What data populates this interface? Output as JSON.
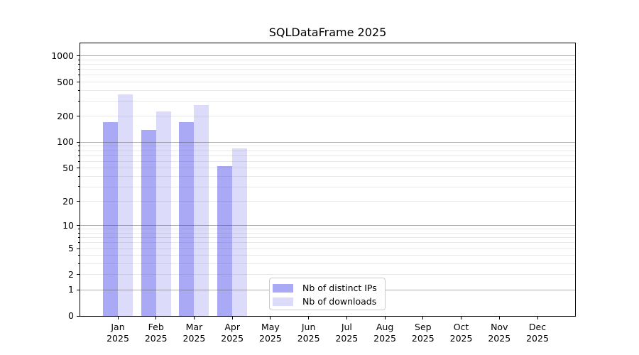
{
  "chart_data": {
    "type": "bar",
    "title": "SQLDataFrame 2025",
    "categories": [
      "Jan",
      "Feb",
      "Mar",
      "Apr",
      "May",
      "Jun",
      "Jul",
      "Aug",
      "Sep",
      "Oct",
      "Nov",
      "Dec"
    ],
    "category_year": "2025",
    "series": [
      {
        "name": "Nb of distinct IPs",
        "color": "#a9a9f6",
        "values": [
          170,
          140,
          170,
          53,
          0,
          0,
          0,
          0,
          0,
          0,
          0,
          0
        ]
      },
      {
        "name": "Nb of downloads",
        "color": "#dcdcfa",
        "values": [
          360,
          230,
          270,
          85,
          0,
          0,
          0,
          0,
          0,
          0,
          0,
          0
        ]
      }
    ],
    "yscale": "log1p",
    "ylim": [
      0,
      1400
    ],
    "y_ticks": [
      0,
      1,
      2,
      5,
      10,
      20,
      50,
      100,
      200,
      500,
      1000
    ],
    "y_major_gridlines": [
      1,
      10,
      100,
      1000
    ],
    "y_minor_gridlines": [
      2,
      3,
      4,
      5,
      6,
      7,
      8,
      9,
      20,
      30,
      40,
      50,
      60,
      70,
      80,
      90,
      200,
      300,
      400,
      500,
      600,
      700,
      800,
      900
    ],
    "grid": true,
    "xlabel": "",
    "ylabel": "",
    "legend": {
      "position": "lower center"
    }
  }
}
